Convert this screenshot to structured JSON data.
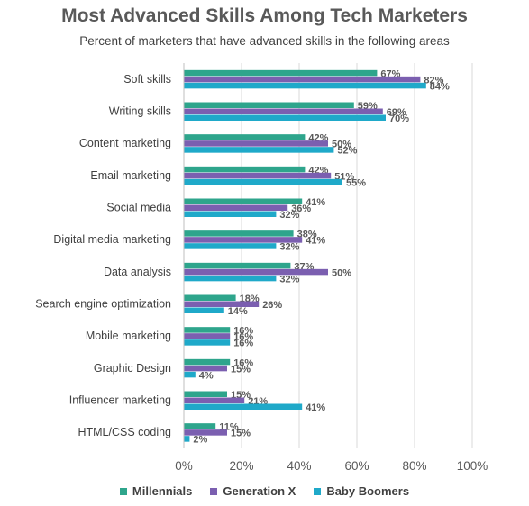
{
  "chart_data": {
    "type": "bar",
    "orientation": "horizontal",
    "title": "Most Advanced Skills Among Tech Marketers",
    "subtitle": "Percent of marketers that have advanced skills in the following areas",
    "categories": [
      "Soft skills",
      "Writing skills",
      "Content marketing",
      "Email marketing",
      "Social media",
      "Digital media marketing",
      "Data analysis",
      "Search engine optimization",
      "Mobile marketing",
      "Graphic Design",
      "Influencer marketing",
      "HTML/CSS coding"
    ],
    "series": [
      {
        "name": "Millennials",
        "color": "#2ea58c",
        "values": [
          67,
          59,
          42,
          42,
          41,
          38,
          37,
          18,
          16,
          16,
          15,
          11
        ]
      },
      {
        "name": "Generation X",
        "color": "#7b5fb0",
        "values": [
          82,
          69,
          50,
          51,
          36,
          41,
          50,
          26,
          16,
          15,
          21,
          15
        ]
      },
      {
        "name": "Baby Boomers",
        "color": "#1fa9c9",
        "values": [
          84,
          70,
          52,
          55,
          32,
          32,
          32,
          14,
          16,
          4,
          41,
          2
        ]
      }
    ],
    "xlim": [
      0,
      100
    ],
    "xticks": [
      "0%",
      "20%",
      "40%",
      "60%",
      "80%",
      "100%"
    ],
    "grid": true,
    "legend_position": "bottom"
  }
}
